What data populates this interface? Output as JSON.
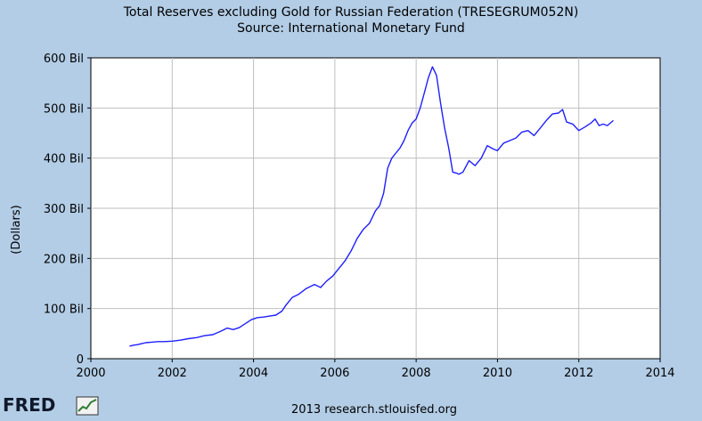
{
  "chart_data": {
    "type": "line",
    "title": "Total Reserves excluding Gold for Russian Federation (TRESEGRUM052N)",
    "subtitle": "Source: International Monetary Fund",
    "ylabel": "(Dollars)",
    "xlabel": "",
    "xlim": [
      2000,
      2014
    ],
    "ylim": [
      0,
      600
    ],
    "x_ticks": [
      2000,
      2002,
      2004,
      2006,
      2008,
      2010,
      2012,
      2014
    ],
    "x_tick_labels": [
      "2000",
      "2002",
      "2004",
      "2006",
      "2008",
      "2010",
      "2012",
      "2014"
    ],
    "y_ticks": [
      0,
      100,
      200,
      300,
      400,
      500,
      600
    ],
    "y_tick_labels": [
      "0",
      "100 Bil",
      "200 Bil",
      "300 Bil",
      "400 Bil",
      "500 Bil",
      "600 Bil"
    ],
    "grid": true,
    "line_color": "#1f1fff",
    "series": [
      {
        "x": [
          2000.95,
          2001.05,
          2001.15,
          2001.25,
          2001.35,
          2001.5,
          2001.65,
          2001.8,
          2002.0,
          2002.2,
          2002.4,
          2002.6,
          2002.8,
          2003.0,
          2003.2,
          2003.35,
          2003.5,
          2003.65,
          2003.8,
          2003.95,
          2004.1,
          2004.25,
          2004.4,
          2004.55,
          2004.7,
          2004.8,
          2004.95,
          2005.1,
          2005.3,
          2005.5,
          2005.65,
          2005.8,
          2005.95,
          2006.1,
          2006.25,
          2006.4,
          2006.55,
          2006.7,
          2006.85,
          2007.0,
          2007.1,
          2007.2,
          2007.3,
          2007.4,
          2007.5,
          2007.6,
          2007.7,
          2007.8,
          2007.9,
          2008.0,
          2008.1,
          2008.2,
          2008.3,
          2008.4,
          2008.5,
          2008.6,
          2008.7,
          2008.8,
          2008.9,
          2009.0,
          2009.05,
          2009.15,
          2009.3,
          2009.45,
          2009.6,
          2009.75,
          2009.9,
          2010.0,
          2010.15,
          2010.3,
          2010.45,
          2010.6,
          2010.75,
          2010.9,
          2011.05,
          2011.2,
          2011.35,
          2011.5,
          2011.6,
          2011.7,
          2011.85,
          2012.0,
          2012.15,
          2012.3,
          2012.4,
          2012.5,
          2012.6,
          2012.7,
          2012.85
        ],
        "values": [
          25,
          27,
          28,
          30,
          32,
          33,
          34,
          34,
          35,
          37,
          40,
          42,
          46,
          48,
          55,
          61,
          58,
          62,
          70,
          78,
          82,
          83,
          85,
          87,
          95,
          107,
          122,
          128,
          140,
          148,
          142,
          155,
          165,
          180,
          195,
          215,
          240,
          258,
          270,
          295,
          305,
          330,
          380,
          400,
          410,
          420,
          435,
          455,
          470,
          478,
          500,
          530,
          560,
          582,
          565,
          510,
          460,
          420,
          372,
          370,
          368,
          372,
          395,
          385,
          400,
          425,
          418,
          415,
          430,
          435,
          440,
          452,
          455,
          445,
          460,
          475,
          488,
          490,
          497,
          472,
          468,
          455,
          462,
          470,
          478,
          465,
          468,
          465,
          475
        ]
      }
    ]
  },
  "footer": {
    "logo_text": "FRED",
    "source": "2013 research.stlouisfed.org"
  }
}
